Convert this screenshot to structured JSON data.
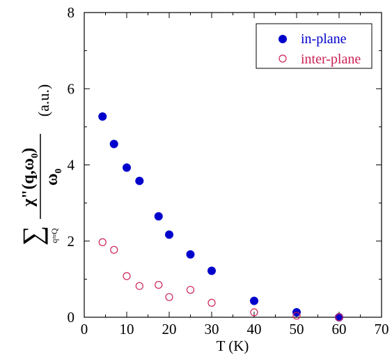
{
  "chart_data": {
    "type": "scatter",
    "xlabel": "T (K)",
    "ylabel": {
      "sum_symbol": "∑",
      "sum_subscript": "q≈Q",
      "numerator_main": "χ\"(",
      "numerator_bold_q": "q",
      "numerator_sep": ",ω",
      "numerator_sub": "0",
      "numerator_close": ")",
      "denominator_main": "ω",
      "denominator_sub": "0",
      "units": "(a.u.)"
    },
    "xlim": [
      0,
      70
    ],
    "ylim": [
      0,
      8
    ],
    "xticks": [
      0,
      10,
      20,
      30,
      40,
      50,
      60,
      70
    ],
    "yticks": [
      0,
      2,
      4,
      6,
      8
    ],
    "xtick_labels": [
      "0",
      "10",
      "20",
      "30",
      "40",
      "50",
      "60",
      "70"
    ],
    "ytick_labels": [
      "0",
      "2",
      "4",
      "6",
      "8"
    ],
    "grid": false,
    "legend_position": "top-right",
    "series": [
      {
        "name": "in-plane",
        "color": "#0000cc",
        "marker": "filled-circle",
        "x": [
          4.3,
          7,
          10,
          13,
          17.5,
          20,
          25,
          30,
          40,
          50,
          60
        ],
        "y": [
          5.27,
          4.55,
          3.93,
          3.58,
          2.65,
          2.17,
          1.65,
          1.22,
          0.43,
          0.13,
          0.0
        ]
      },
      {
        "name": "inter-plane",
        "color": "#cc2255",
        "marker": "open-circle",
        "x": [
          4.3,
          7,
          10,
          13,
          17.5,
          20,
          25,
          30,
          40,
          50,
          60
        ],
        "y": [
          1.97,
          1.77,
          1.08,
          0.82,
          0.85,
          0.53,
          0.72,
          0.38,
          0.13,
          0.04,
          0.0
        ]
      }
    ]
  }
}
